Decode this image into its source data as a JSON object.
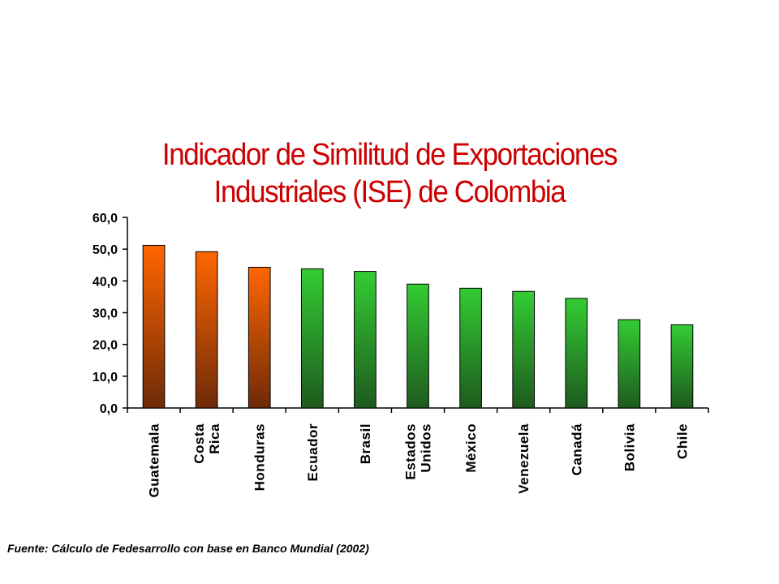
{
  "chart_data": {
    "type": "bar",
    "title_lines": [
      "Indicador de Similitud de Exportaciones",
      "Industriales (ISE) de Colombia"
    ],
    "categories": [
      "Guatemala",
      "Costa Rica",
      "Honduras",
      "Ecuador",
      "Brasil",
      "Estados Unidos",
      "México",
      "Venezuela",
      "Canadá",
      "Bolivia",
      "Chile"
    ],
    "category_label_lines": [
      [
        "Guatemala"
      ],
      [
        "Costa",
        "Rica"
      ],
      [
        "Honduras"
      ],
      [
        "Ecuador"
      ],
      [
        "Brasil"
      ],
      [
        "Estados",
        "Unidos"
      ],
      [
        "México"
      ],
      [
        "Venezuela"
      ],
      [
        "Canadá"
      ],
      [
        "Bolivia"
      ],
      [
        "Chile"
      ]
    ],
    "values": [
      51.2,
      49.2,
      44.3,
      43.8,
      43.0,
      39.0,
      37.7,
      36.7,
      34.5,
      27.8,
      26.2
    ],
    "highlighted_categories": [
      "Guatemala",
      "Costa Rica",
      "Honduras"
    ],
    "colors": {
      "highlight_top": "#ff6600",
      "highlight_bottom": "#6e2a08",
      "normal_top": "#33cc33",
      "normal_bottom": "#1e5a1e"
    },
    "y_tick_labels": [
      "0,0",
      "10,0",
      "20,0",
      "30,0",
      "40,0",
      "50,0",
      "60,0"
    ],
    "ylim": [
      0,
      60
    ],
    "y_tick_step": 10,
    "xlabel": "",
    "ylabel": "",
    "grid": false,
    "legend": "none"
  },
  "footer": {
    "source": "Fuente: Cálculo de Fedesarrollo con base en Banco Mundial (2002)"
  }
}
